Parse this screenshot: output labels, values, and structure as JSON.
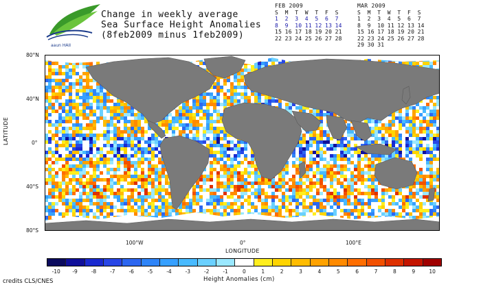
{
  "header": {
    "logo_text": "aaun HAII",
    "title_lines": [
      "Change in weekly average",
      "Sea Surface Height Anomalies",
      "(8feb2009 minus 1feb2009)"
    ]
  },
  "calendars": [
    {
      "month": "FEB 2009",
      "days_header": [
        "S",
        "M",
        "T",
        "W",
        "T",
        "F",
        "S"
      ],
      "weeks": [
        [
          "1",
          "2",
          "3",
          "4",
          "5",
          "6",
          "7"
        ],
        [
          "8",
          "9",
          "10",
          "11",
          "12",
          "13",
          "14"
        ],
        [
          "15",
          "16",
          "17",
          "18",
          "19",
          "20",
          "21"
        ],
        [
          "22",
          "23",
          "24",
          "25",
          "26",
          "27",
          "28"
        ]
      ],
      "highlight_weeks": [
        0,
        1
      ]
    },
    {
      "month": "MAR 2009",
      "days_header": [
        "S",
        "M",
        "T",
        "W",
        "T",
        "F",
        "S"
      ],
      "weeks": [
        [
          "1",
          "2",
          "3",
          "4",
          "5",
          "6",
          "7"
        ],
        [
          "8",
          "9",
          "10",
          "11",
          "12",
          "13",
          "14"
        ],
        [
          "15",
          "16",
          "17",
          "18",
          "19",
          "20",
          "21"
        ],
        [
          "22",
          "23",
          "24",
          "25",
          "26",
          "27",
          "28"
        ],
        [
          "29",
          "30",
          "31",
          "",
          "",
          "",
          ""
        ]
      ],
      "highlight_weeks": []
    }
  ],
  "axes": {
    "y_ticks": [
      "80°N",
      "40°N",
      "0°",
      "40°S",
      "80°S"
    ],
    "y_tick_values": [
      80,
      40,
      0,
      -40,
      -80
    ],
    "y_label": "LATITUDE",
    "x_ticks": [
      "100°W",
      "0°",
      "100°E"
    ],
    "x_tick_values": [
      -100,
      0,
      100
    ],
    "x_label": "LONGITUDE",
    "lon_range": [
      -180,
      180
    ],
    "lat_range": [
      -82,
      82
    ]
  },
  "colorbar": {
    "ticks": [
      "-10",
      "-9",
      "-8",
      "-7",
      "-6",
      "-5",
      "-4",
      "-3",
      "-2",
      "-1",
      "0",
      "1",
      "2",
      "3",
      "4",
      "5",
      "6",
      "7",
      "8",
      "9",
      "10"
    ],
    "colors": [
      "#0b0b5e",
      "#10109a",
      "#1a2ad0",
      "#2846e6",
      "#2c66f0",
      "#2e84f8",
      "#36a0ff",
      "#48baff",
      "#6ad0ff",
      "#9ae8ff",
      "#ffffff",
      "#ffee1e",
      "#ffd400",
      "#ffbc00",
      "#ffa200",
      "#ff8a00",
      "#ff6e00",
      "#f25000",
      "#de3000",
      "#c41500",
      "#a00000"
    ],
    "title": "Height Anomalies (cm)"
  },
  "footer": {
    "credits": "credits CLS/CNES"
  },
  "legend_colors": {
    "land": "#7a7a7a",
    "ice": "#ffffff",
    "frame": "#000000"
  }
}
